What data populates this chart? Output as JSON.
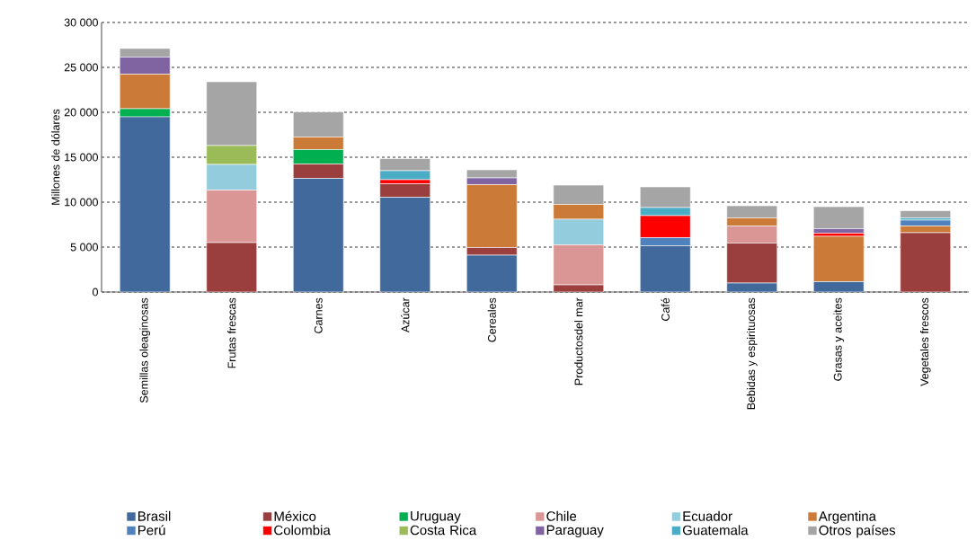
{
  "chart_data": {
    "type": "bar",
    "stacked": true,
    "ylabel": "Millones de dólares",
    "categories": [
      "Semillas oleaginosas",
      "Frutas frescas",
      "Carnes",
      "Azúcar",
      "Cereales",
      "Productosdel mar",
      "Café",
      "Bebidas y espirituosas",
      "Grasas y aceites",
      "Vegetales frescos"
    ],
    "series": [
      {
        "name": "Brasil",
        "color": "#41699b",
        "values": [
          19500,
          null,
          12650,
          10550,
          4100,
          null,
          5150,
          1000,
          1150,
          null
        ]
      },
      {
        "name": "México",
        "color": "#9b3f3e",
        "values": [
          null,
          5500,
          1600,
          1500,
          850,
          800,
          null,
          4450,
          null,
          6600
        ]
      },
      {
        "name": "Uruguay",
        "color": "#00b050",
        "values": [
          900,
          null,
          1600,
          null,
          null,
          null,
          null,
          null,
          null,
          null
        ]
      },
      {
        "name": "Chile",
        "color": "#d99694",
        "values": [
          null,
          5850,
          null,
          null,
          null,
          4450,
          null,
          1900,
          null,
          null
        ]
      },
      {
        "name": "Ecuador",
        "color": "#93cddd",
        "values": [
          null,
          2850,
          null,
          null,
          null,
          2850,
          null,
          null,
          null,
          null
        ]
      },
      {
        "name": "Argentina",
        "color": "#cc7a37",
        "values": [
          3850,
          null,
          1400,
          null,
          7000,
          1650,
          null,
          900,
          5050,
          750
        ]
      },
      {
        "name": "Perú",
        "color": "#4f81bd",
        "values": [
          null,
          null,
          null,
          null,
          null,
          null,
          900,
          null,
          null,
          650
        ]
      },
      {
        "name": "Colombia",
        "color": "#ff0000",
        "values": [
          null,
          null,
          null,
          450,
          null,
          null,
          2450,
          null,
          350,
          null
        ]
      },
      {
        "name": "Costa Rica",
        "color": "#9bbb59",
        "values": [
          null,
          2100,
          null,
          null,
          null,
          null,
          null,
          null,
          null,
          null
        ]
      },
      {
        "name": "Paraguay",
        "color": "#8064a2",
        "values": [
          1900,
          null,
          null,
          null,
          750,
          null,
          null,
          null,
          500,
          null
        ]
      },
      {
        "name": "Guatemala",
        "color": "#4bacc6",
        "values": [
          null,
          null,
          null,
          1000,
          null,
          null,
          900,
          null,
          null,
          250
        ]
      },
      {
        "name": "Otros países",
        "color": "#a5a5a5",
        "values": [
          960,
          7100,
          2800,
          1350,
          900,
          2150,
          2300,
          1350,
          2450,
          800
        ]
      }
    ],
    "ylim": [
      0,
      30000
    ],
    "yticks": [
      0,
      {
        "value": 5000,
        "label": "5 000"
      },
      {
        "value": 10000,
        "label": "10 000"
      },
      {
        "value": 15000,
        "label": "15 000"
      },
      {
        "value": 20000,
        "label": "20 000"
      },
      {
        "value": 25000,
        "label": "25 000"
      },
      {
        "value": 30000,
        "label": "30 000"
      }
    ],
    "grid": "y",
    "legend": "bottom"
  }
}
